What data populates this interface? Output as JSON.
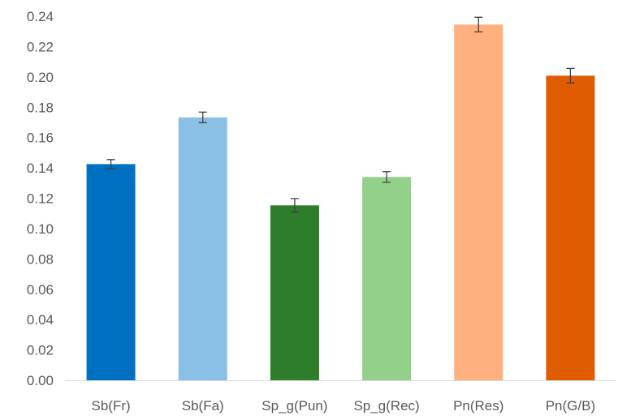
{
  "chart_data": {
    "type": "bar",
    "categories": [
      "Sb(Fr)",
      "Sb(Fa)",
      "Sp_g(Pun)",
      "Sp_g(Rec)",
      "Pn(Res)",
      "Pn(G/B)"
    ],
    "values": [
      0.1425,
      0.1733,
      0.1153,
      0.134,
      0.2345,
      0.2008
    ],
    "errors": [
      0.003,
      0.0035,
      0.0045,
      0.0035,
      0.0048,
      0.0048
    ],
    "colors": [
      "#0070c0",
      "#8ac0e5",
      "#2e7d2a",
      "#93d18b",
      "#ffb07f",
      "#e05c00"
    ],
    "ylim": [
      0,
      0.24
    ],
    "yticks": [
      "0.00",
      "0.02",
      "0.04",
      "0.06",
      "0.08",
      "0.10",
      "0.12",
      "0.14",
      "0.16",
      "0.18",
      "0.20",
      "0.22",
      "0.24"
    ],
    "title": "",
    "xlabel": "",
    "ylabel": "",
    "grid": false,
    "error_bars": true
  }
}
